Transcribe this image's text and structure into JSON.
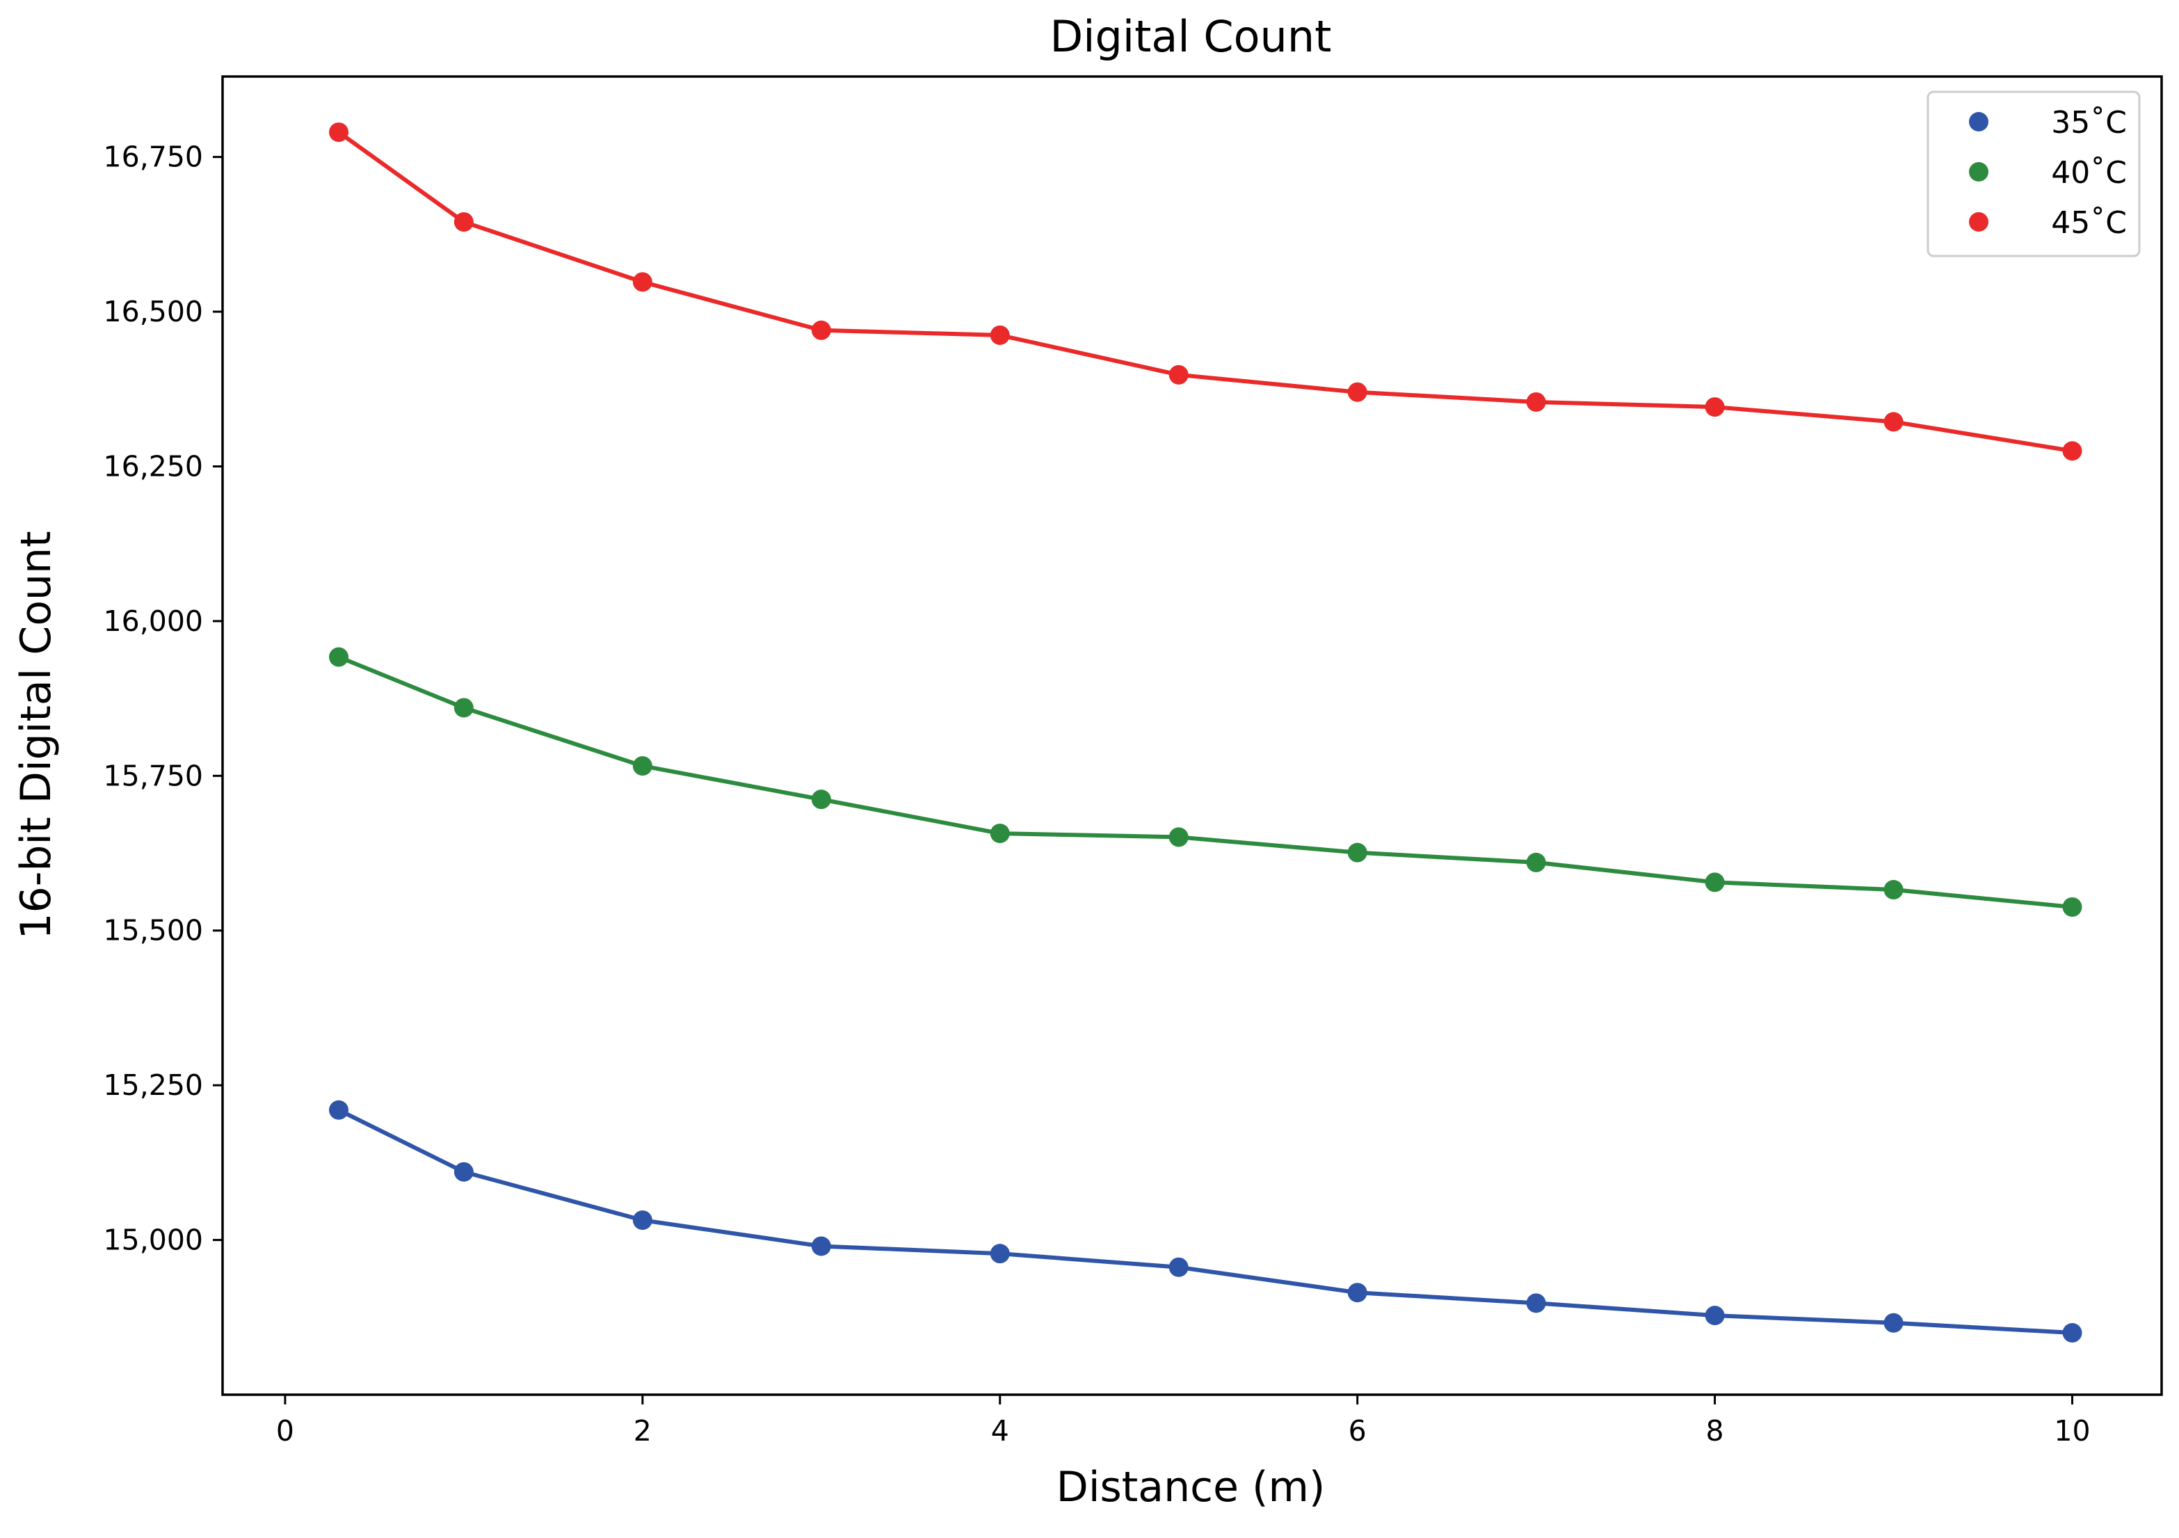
{
  "chart_data": {
    "type": "line",
    "title": "Digital Count",
    "xlabel": "Distance (m)",
    "ylabel": "16-bit Digital Count",
    "xlim": [
      -0.35,
      10.5
    ],
    "ylim": [
      14750,
      16880
    ],
    "x_ticks": [
      0,
      2,
      4,
      6,
      8,
      10
    ],
    "y_ticks": [
      15000,
      15250,
      15500,
      15750,
      16000,
      16250,
      16500,
      16750
    ],
    "y_tick_labels": [
      "15,000",
      "15,250",
      "15,500",
      "15,750",
      "16,000",
      "16,250",
      "16,500",
      "16,750"
    ],
    "x_tick_labels": [
      "0",
      "2",
      "4",
      "6",
      "8",
      "10"
    ],
    "grid": false,
    "legend_position": "top-right",
    "x": [
      0.3,
      1,
      2,
      3,
      4,
      5,
      6,
      7,
      8,
      9,
      10
    ],
    "series": [
      {
        "name": "35˚C",
        "color": "#2f55a9",
        "values": [
          15210,
          15110,
          15032,
          14990,
          14978,
          14956,
          14915,
          14898,
          14878,
          14866,
          14850
        ]
      },
      {
        "name": "40˚C",
        "color": "#2d8b3f",
        "values": [
          15942,
          15860,
          15766,
          15712,
          15657,
          15651,
          15626,
          15610,
          15578,
          15566,
          15538
        ]
      },
      {
        "name": "45˚C",
        "color": "#ea2a2a",
        "values": [
          16790,
          16645,
          16548,
          16470,
          16462,
          16398,
          16370,
          16354,
          16346,
          16322,
          16275
        ]
      }
    ]
  }
}
